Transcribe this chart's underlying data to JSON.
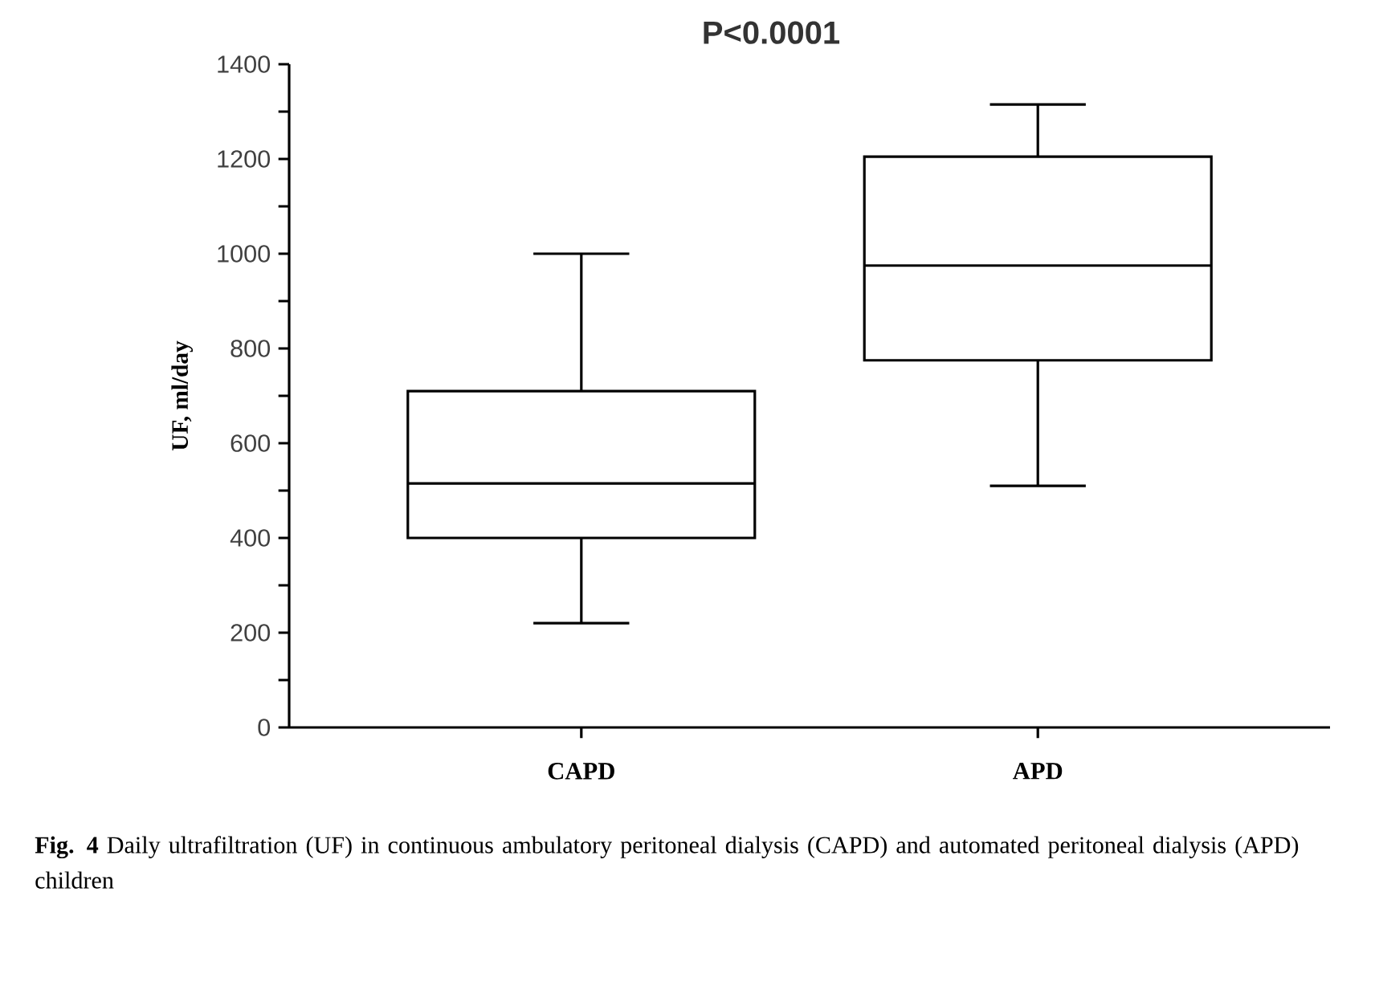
{
  "chart_data": {
    "type": "box",
    "ylabel": "UF, ml/day",
    "categories": [
      "CAPD",
      "APD"
    ],
    "color": "#000000",
    "boxes": [
      {
        "low": 220,
        "q1": 400,
        "median": 515,
        "q3": 710,
        "high": 1000
      },
      {
        "low": 510,
        "q1": 775,
        "median": 975,
        "q3": 1205,
        "high": 1315
      }
    ],
    "ylim": [
      0,
      1400
    ],
    "yticks": [
      0,
      200,
      400,
      600,
      800,
      1000,
      1200,
      1400
    ],
    "grid": false,
    "annotations": [
      "P<0.0001",
      "**Fig. 4** Daily ultrafiltration (UF) in continuous ambulatory peritoneal dialysis (CAPD) and automated peritoneal dialysis (APD) children"
    ]
  }
}
